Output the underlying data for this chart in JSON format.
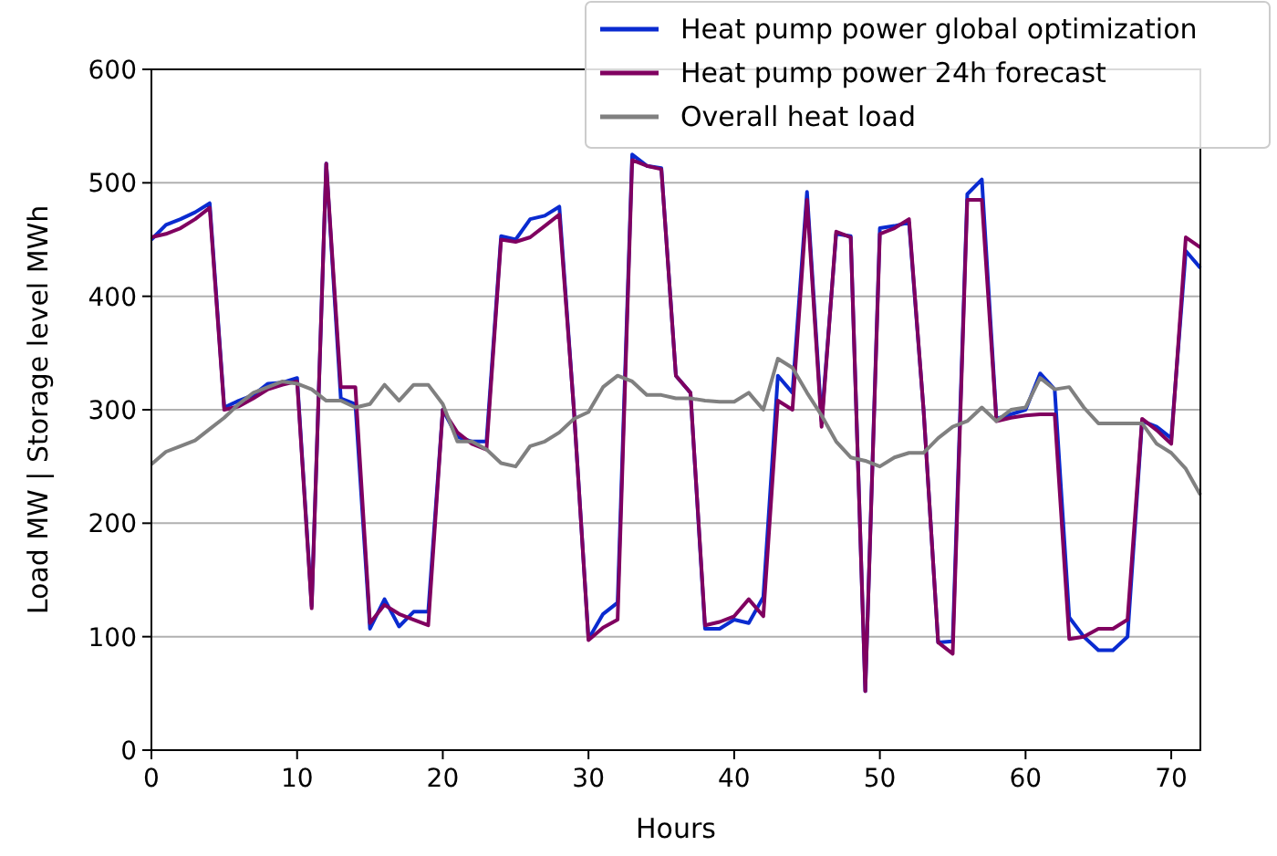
{
  "chart_data": {
    "type": "line",
    "xlabel": "Hours",
    "ylabel": "Load MW | Storage level MWh",
    "x": [
      0,
      1,
      2,
      3,
      4,
      5,
      6,
      7,
      8,
      9,
      10,
      11,
      12,
      13,
      14,
      15,
      16,
      17,
      18,
      19,
      20,
      21,
      22,
      23,
      24,
      25,
      26,
      27,
      28,
      29,
      30,
      31,
      32,
      33,
      34,
      35,
      36,
      37,
      38,
      39,
      40,
      41,
      42,
      43,
      44,
      45,
      46,
      47,
      48,
      49,
      50,
      51,
      52,
      53,
      54,
      55,
      56,
      57,
      58,
      59,
      60,
      61,
      62,
      63,
      64,
      65,
      66,
      67,
      68,
      69,
      70,
      71,
      72
    ],
    "xlim": [
      0,
      72
    ],
    "xticks": [
      0,
      10,
      20,
      30,
      40,
      50,
      60,
      70
    ],
    "ylim": [
      0,
      600
    ],
    "yticks": [
      0,
      100,
      200,
      300,
      400,
      500,
      600
    ],
    "grid": "y",
    "legend": "top right",
    "series": [
      {
        "name": "Heat pump power global optimization",
        "color": "#0a2bd0",
        "values": [
          450,
          463,
          468,
          474,
          482,
          302,
          308,
          313,
          323,
          324,
          328,
          127,
          517,
          310,
          305,
          107,
          133,
          109,
          122,
          122,
          300,
          276,
          272,
          272,
          453,
          450,
          468,
          471,
          479,
          300,
          98,
          120,
          130,
          525,
          515,
          513,
          330,
          315,
          107,
          107,
          115,
          112,
          135,
          330,
          315,
          492,
          290,
          455,
          453,
          52,
          460,
          462,
          465,
          300,
          95,
          96,
          490,
          503,
          292,
          296,
          300,
          332,
          318,
          117,
          100,
          88,
          88,
          100,
          290,
          285,
          275,
          440,
          425
        ]
      },
      {
        "name": "Heat pump power 24h forecast",
        "color": "#800060",
        "values": [
          452,
          455,
          460,
          468,
          478,
          300,
          303,
          310,
          318,
          322,
          325,
          125,
          517,
          320,
          320,
          112,
          128,
          120,
          115,
          110,
          300,
          280,
          270,
          265,
          450,
          448,
          452,
          462,
          472,
          300,
          97,
          108,
          115,
          520,
          515,
          512,
          330,
          315,
          110,
          113,
          118,
          133,
          118,
          308,
          300,
          485,
          285,
          457,
          452,
          52,
          455,
          460,
          468,
          300,
          95,
          85,
          485,
          485,
          290,
          293,
          295,
          296,
          296,
          98,
          100,
          107,
          107,
          115,
          292,
          282,
          270,
          452,
          443
        ]
      },
      {
        "name": "Overall heat load",
        "color": "#808080",
        "values": [
          252,
          263,
          268,
          273,
          283,
          293,
          305,
          315,
          320,
          325,
          323,
          318,
          308,
          308,
          302,
          305,
          322,
          308,
          322,
          322,
          305,
          272,
          272,
          265,
          253,
          250,
          268,
          272,
          280,
          292,
          298,
          320,
          330,
          325,
          313,
          313,
          310,
          310,
          308,
          307,
          307,
          315,
          300,
          345,
          337,
          315,
          295,
          272,
          258,
          255,
          250,
          258,
          262,
          262,
          275,
          285,
          290,
          302,
          290,
          300,
          302,
          328,
          318,
          320,
          302,
          288,
          288,
          288,
          288,
          270,
          262,
          248,
          225
        ]
      }
    ]
  }
}
